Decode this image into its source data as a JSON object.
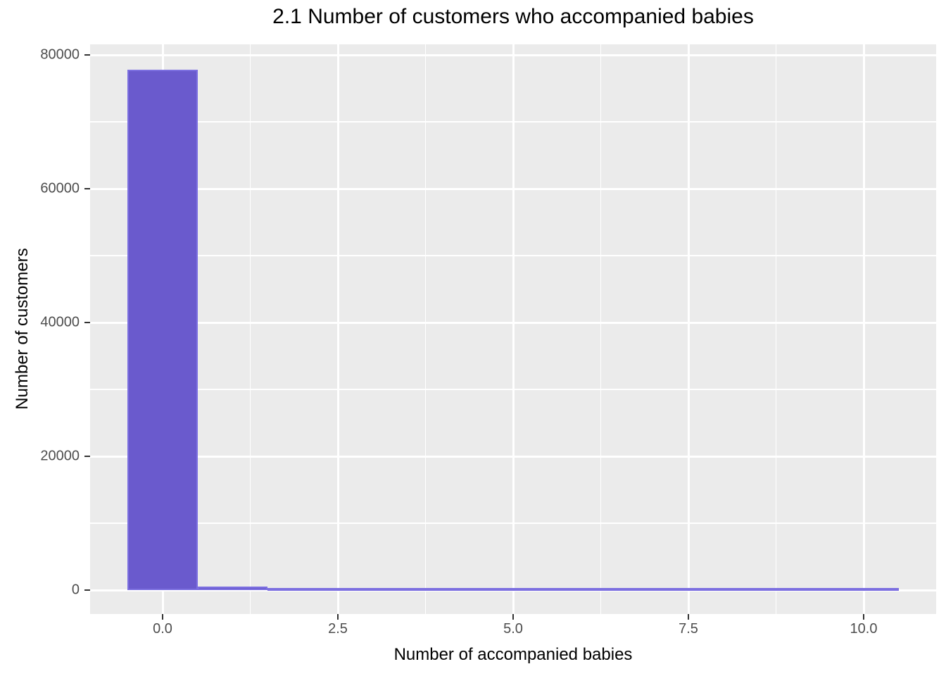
{
  "title": "2.1 Number of customers who accompanied babies",
  "colors": {
    "panel_background": "#EBEBEB",
    "gridline": "#FFFFFF",
    "bar_fill": "#6A5ACD",
    "bar_stroke": "#7C6FE0",
    "tick_mark": "#333333",
    "tick_label": "#4D4D4D",
    "text": "#000000"
  },
  "chart_data": {
    "type": "bar",
    "subtype": "histogram",
    "title": "2.1 Number of customers who accompanied babies",
    "xlabel": "Number of accompanied babies",
    "ylabel": "Number of customers",
    "bin_centers": [
      0,
      1,
      2,
      3,
      4,
      5,
      6,
      7,
      8,
      9,
      10
    ],
    "binwidth": 1,
    "values": [
      77800,
      550,
      200,
      30,
      30,
      30,
      30,
      30,
      30,
      30,
      30
    ],
    "xlim": [
      -1.05,
      11.05
    ],
    "ylim": [
      -3900,
      81500
    ],
    "x_ticks": [
      {
        "v": 0,
        "label": "0.0"
      },
      {
        "v": 2.5,
        "label": "2.5"
      },
      {
        "v": 5,
        "label": "5.0"
      },
      {
        "v": 7.5,
        "label": "7.5"
      },
      {
        "v": 10,
        "label": "10.0"
      }
    ],
    "y_ticks": [
      {
        "v": 0,
        "label": "0"
      },
      {
        "v": 20000,
        "label": "20000"
      },
      {
        "v": 40000,
        "label": "40000"
      },
      {
        "v": 60000,
        "label": "60000"
      },
      {
        "v": 80000,
        "label": "80000"
      }
    ],
    "x_minor_ticks": [
      1.25,
      3.75,
      6.25,
      8.75
    ],
    "y_minor_ticks": [
      10000,
      30000,
      50000,
      70000
    ],
    "grid": true,
    "legend": false,
    "theme": "ggplot-grey"
  }
}
